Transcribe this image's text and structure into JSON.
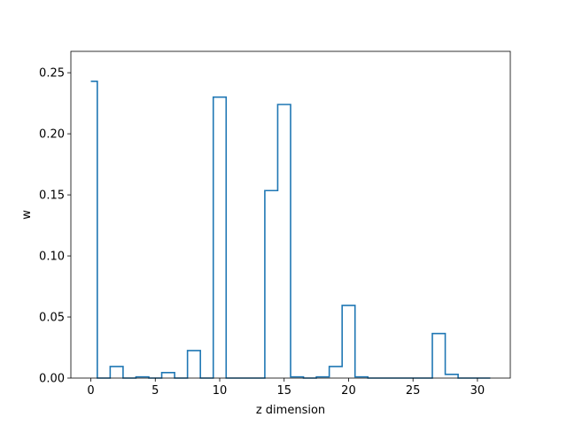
{
  "chart_data": {
    "type": "line",
    "style": "step",
    "xlabel": "z dimension",
    "ylabel": "w",
    "xlim": [
      -1.55,
      32.55
    ],
    "ylim": [
      0.0,
      0.2675
    ],
    "xticks": [
      0,
      5,
      10,
      15,
      20,
      25,
      30
    ],
    "yticks": [
      0.0,
      0.05,
      0.1,
      0.15,
      0.2,
      0.25
    ],
    "ytick_labels": [
      "0.00",
      "0.05",
      "0.10",
      "0.15",
      "0.20",
      "0.25"
    ],
    "grid": false,
    "series": [
      {
        "color": "#1f77b4",
        "x": [
          0,
          1,
          2,
          3,
          4,
          5,
          6,
          7,
          8,
          9,
          10,
          11,
          12,
          13,
          14,
          15,
          16,
          17,
          18,
          19,
          20,
          21,
          22,
          23,
          24,
          25,
          26,
          27,
          28,
          29,
          30,
          31
        ],
        "values": [
          0.243,
          0.0,
          0.0095,
          0.0,
          0.001,
          0.0,
          0.0045,
          0.0,
          0.0225,
          0.0,
          0.23,
          0.0,
          0.0,
          0.0,
          0.1535,
          0.224,
          0.001,
          0.0,
          0.001,
          0.0095,
          0.0595,
          0.001,
          0.0,
          0.0,
          0.0,
          0.0,
          0.0,
          0.0365,
          0.003,
          0.0,
          0.0,
          0.0
        ]
      }
    ]
  }
}
